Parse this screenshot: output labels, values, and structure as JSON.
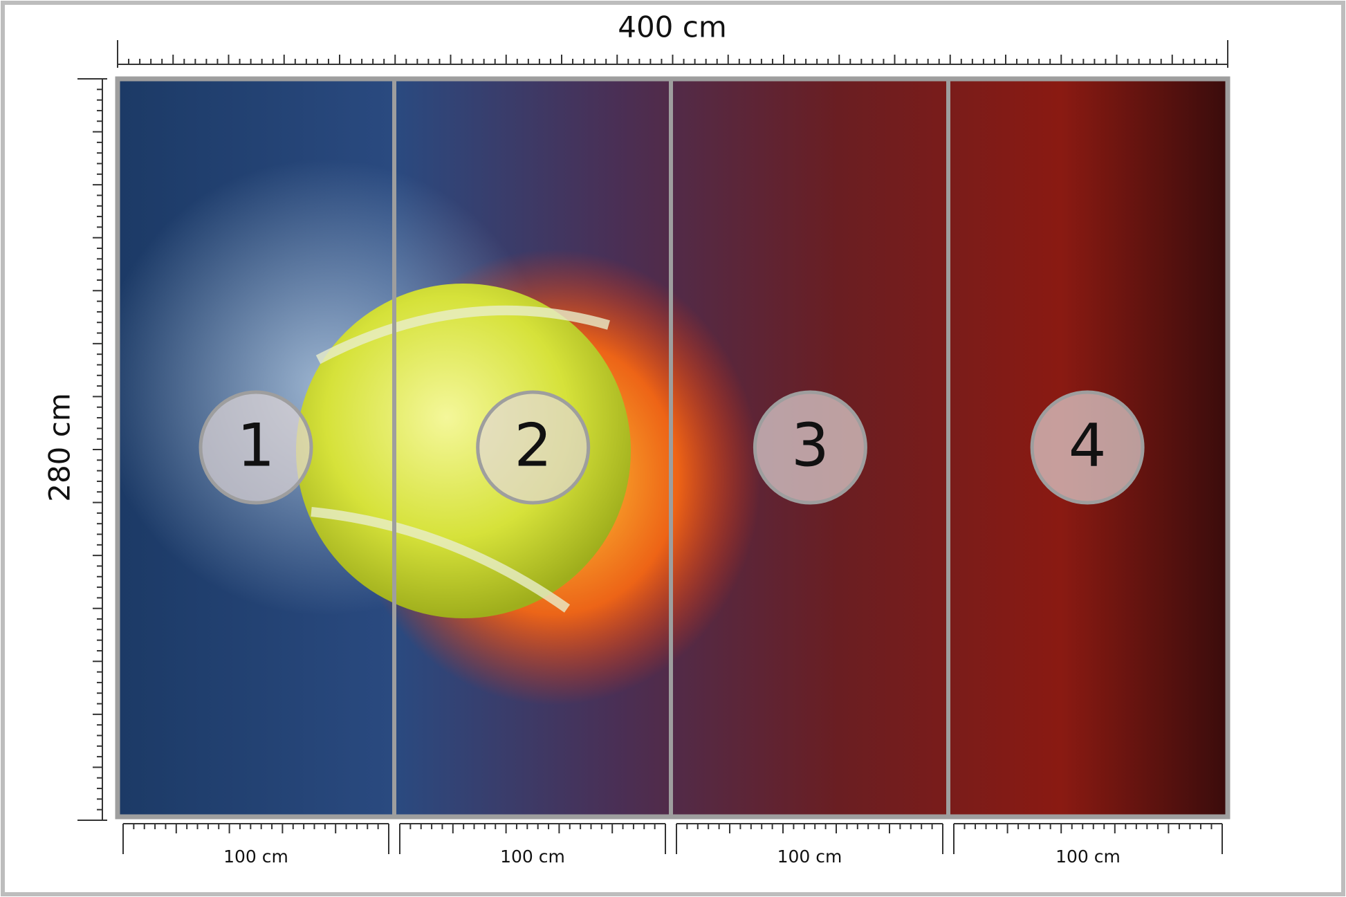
{
  "dimensions": {
    "width": "400 cm",
    "height": "280 cm"
  },
  "panels": [
    {
      "number": "1",
      "width": "100 cm"
    },
    {
      "number": "2",
      "width": "100 cm"
    },
    {
      "number": "3",
      "width": "100 cm"
    },
    {
      "number": "4",
      "width": "100 cm"
    }
  ]
}
